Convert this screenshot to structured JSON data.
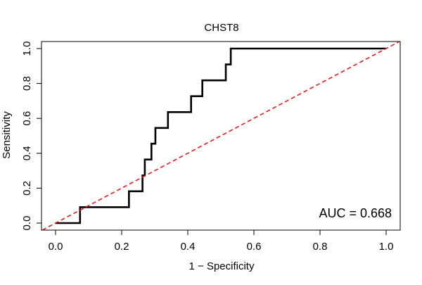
{
  "chart_data": {
    "type": "line",
    "title": "CHST8",
    "xlabel": "1 − Specificity",
    "ylabel": "Sensitivity",
    "xlim": [
      0,
      1
    ],
    "ylim": [
      0,
      1
    ],
    "x_ticks": [
      0,
      0.2,
      0.4,
      0.6,
      0.8,
      1
    ],
    "x_tick_labels": [
      "0.0",
      "0.2",
      "0.4",
      "0.6",
      "0.8",
      "1.0"
    ],
    "y_ticks": [
      0,
      0.2,
      0.4,
      0.6,
      0.8,
      1
    ],
    "y_tick_labels": [
      "0.0",
      "0.2",
      "0.4",
      "0.6",
      "0.8",
      "1.0"
    ],
    "grid": false,
    "annotation": "AUC = 0.668",
    "annotation_position": "bottom-right",
    "series": [
      {
        "name": "ROC curve",
        "color": "#000000",
        "style": "solid",
        "step": true,
        "points": [
          [
            0.0,
            0.0
          ],
          [
            0.074,
            0.0
          ],
          [
            0.074,
            0.091
          ],
          [
            0.222,
            0.091
          ],
          [
            0.222,
            0.182
          ],
          [
            0.263,
            0.182
          ],
          [
            0.263,
            0.273
          ],
          [
            0.27,
            0.273
          ],
          [
            0.27,
            0.364
          ],
          [
            0.29,
            0.364
          ],
          [
            0.29,
            0.455
          ],
          [
            0.302,
            0.455
          ],
          [
            0.302,
            0.545
          ],
          [
            0.34,
            0.545
          ],
          [
            0.34,
            0.636
          ],
          [
            0.41,
            0.636
          ],
          [
            0.41,
            0.727
          ],
          [
            0.444,
            0.727
          ],
          [
            0.444,
            0.818
          ],
          [
            0.515,
            0.818
          ],
          [
            0.515,
            0.909
          ],
          [
            0.53,
            0.909
          ],
          [
            0.53,
            1.0
          ],
          [
            1.0,
            1.0
          ]
        ]
      },
      {
        "name": "Reference line",
        "color": "#e41a1c",
        "style": "dashed",
        "points": [
          [
            -0.04,
            -0.04
          ],
          [
            1.04,
            1.04
          ]
        ]
      }
    ]
  }
}
